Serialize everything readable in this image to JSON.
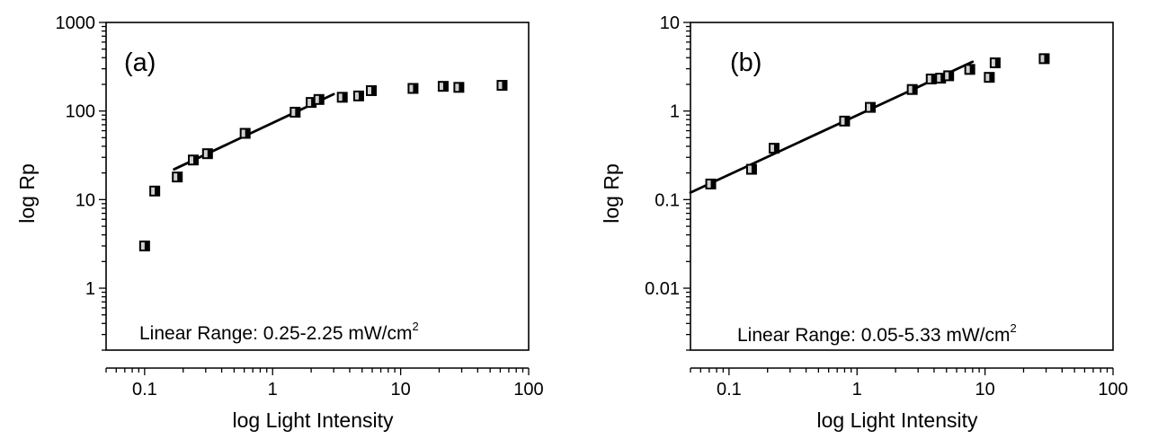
{
  "chart_data": [
    {
      "type": "scatter",
      "panel_label": "(a)",
      "xlabel": "log Light Intensity",
      "ylabel": "log Rp",
      "xscale": "log",
      "yscale": "log",
      "xlim": [
        0.05,
        100
      ],
      "ylim": [
        0.2,
        1000
      ],
      "x_ticks": [
        "0.1",
        "1",
        "10",
        "100"
      ],
      "x_tick_values": [
        0.1,
        1,
        10,
        100
      ],
      "y_ticks": [
        "1",
        "10",
        "100",
        "1000"
      ],
      "y_tick_values": [
        1,
        10,
        100,
        1000
      ],
      "annotation": {
        "text": "Linear Range: 0.25-2.25 mW/cm",
        "superscript": "2"
      },
      "series": [
        {
          "marker": "square",
          "x": [
            0.1,
            0.12,
            0.18,
            0.24,
            0.31,
            0.61,
            1.5,
            2.0,
            2.3,
            3.5,
            4.7,
            5.9,
            12.5,
            21.5,
            28.5,
            62
          ],
          "y": [
            3,
            12.5,
            18,
            28,
            33,
            56,
            97,
            125,
            135,
            143,
            148,
            170,
            180,
            190,
            185,
            195
          ]
        }
      ],
      "fit_line": {
        "x": [
          0.17,
          3.0
        ],
        "y": [
          22,
          155
        ]
      }
    },
    {
      "type": "scatter",
      "panel_label": "(b)",
      "xlabel": "log Light Intensity",
      "ylabel": "log Rp",
      "xscale": "log",
      "yscale": "log",
      "xlim": [
        0.05,
        100
      ],
      "ylim": [
        0.002,
        10
      ],
      "x_ticks": [
        "0.1",
        "1",
        "10",
        "100"
      ],
      "x_tick_values": [
        0.1,
        1,
        10,
        100
      ],
      "y_ticks": [
        "0.01",
        "0.1",
        "1",
        "10"
      ],
      "y_tick_values": [
        0.01,
        0.1,
        1,
        10
      ],
      "annotation": {
        "text": "Linear Range: 0.05-5.33 mW/cm",
        "superscript": "2"
      },
      "series": [
        {
          "marker": "square",
          "x": [
            0.072,
            0.15,
            0.225,
            0.8,
            1.27,
            2.7,
            3.8,
            4.5,
            5.2,
            7.6,
            10.8,
            12,
            29
          ],
          "y": [
            0.15,
            0.22,
            0.38,
            0.77,
            1.1,
            1.75,
            2.3,
            2.35,
            2.5,
            2.95,
            2.4,
            3.5,
            3.9
          ]
        }
      ],
      "fit_line": {
        "x": [
          0.05,
          8.0
        ],
        "y": [
          0.12,
          3.6
        ]
      }
    }
  ]
}
